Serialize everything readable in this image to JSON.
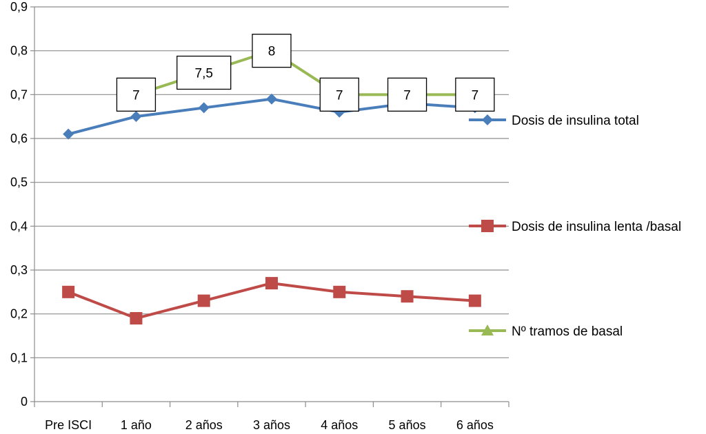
{
  "chart_data": {
    "type": "line",
    "categories": [
      "Pre ISCI",
      "1 año",
      "2 años",
      "3 años",
      "4 años",
      "5 años",
      "6 años"
    ],
    "ylim": [
      0,
      0.9
    ],
    "yticks": [
      0,
      0.1,
      0.2,
      0.3,
      0.4,
      0.5,
      0.6,
      0.7,
      0.8,
      0.9
    ],
    "ytick_labels": [
      "0",
      "0,1",
      "0,2",
      "0,3",
      "0,4",
      "0,5",
      "0,6",
      "0,7",
      "0,8",
      "0,9"
    ],
    "grid": true,
    "legend_position": "right",
    "series": [
      {
        "name": "Dosis de insulina total",
        "color": "#4a7ebb",
        "marker": "diamond",
        "values": [
          0.61,
          0.65,
          0.67,
          0.69,
          0.66,
          0.68,
          0.67
        ]
      },
      {
        "name": "Dosis de insulina lenta /basal",
        "color": "#be4b48",
        "marker": "square",
        "values": [
          0.25,
          0.19,
          0.23,
          0.27,
          0.25,
          0.24,
          0.23
        ]
      },
      {
        "name": "Nº tramos de basal",
        "color": "#98b954",
        "marker": "triangle",
        "values": [
          null,
          0.7,
          0.75,
          0.8,
          0.7,
          0.7,
          0.7
        ],
        "data_labels": [
          null,
          "7",
          "7,5",
          "8",
          "7",
          "7",
          "7"
        ]
      }
    ]
  }
}
